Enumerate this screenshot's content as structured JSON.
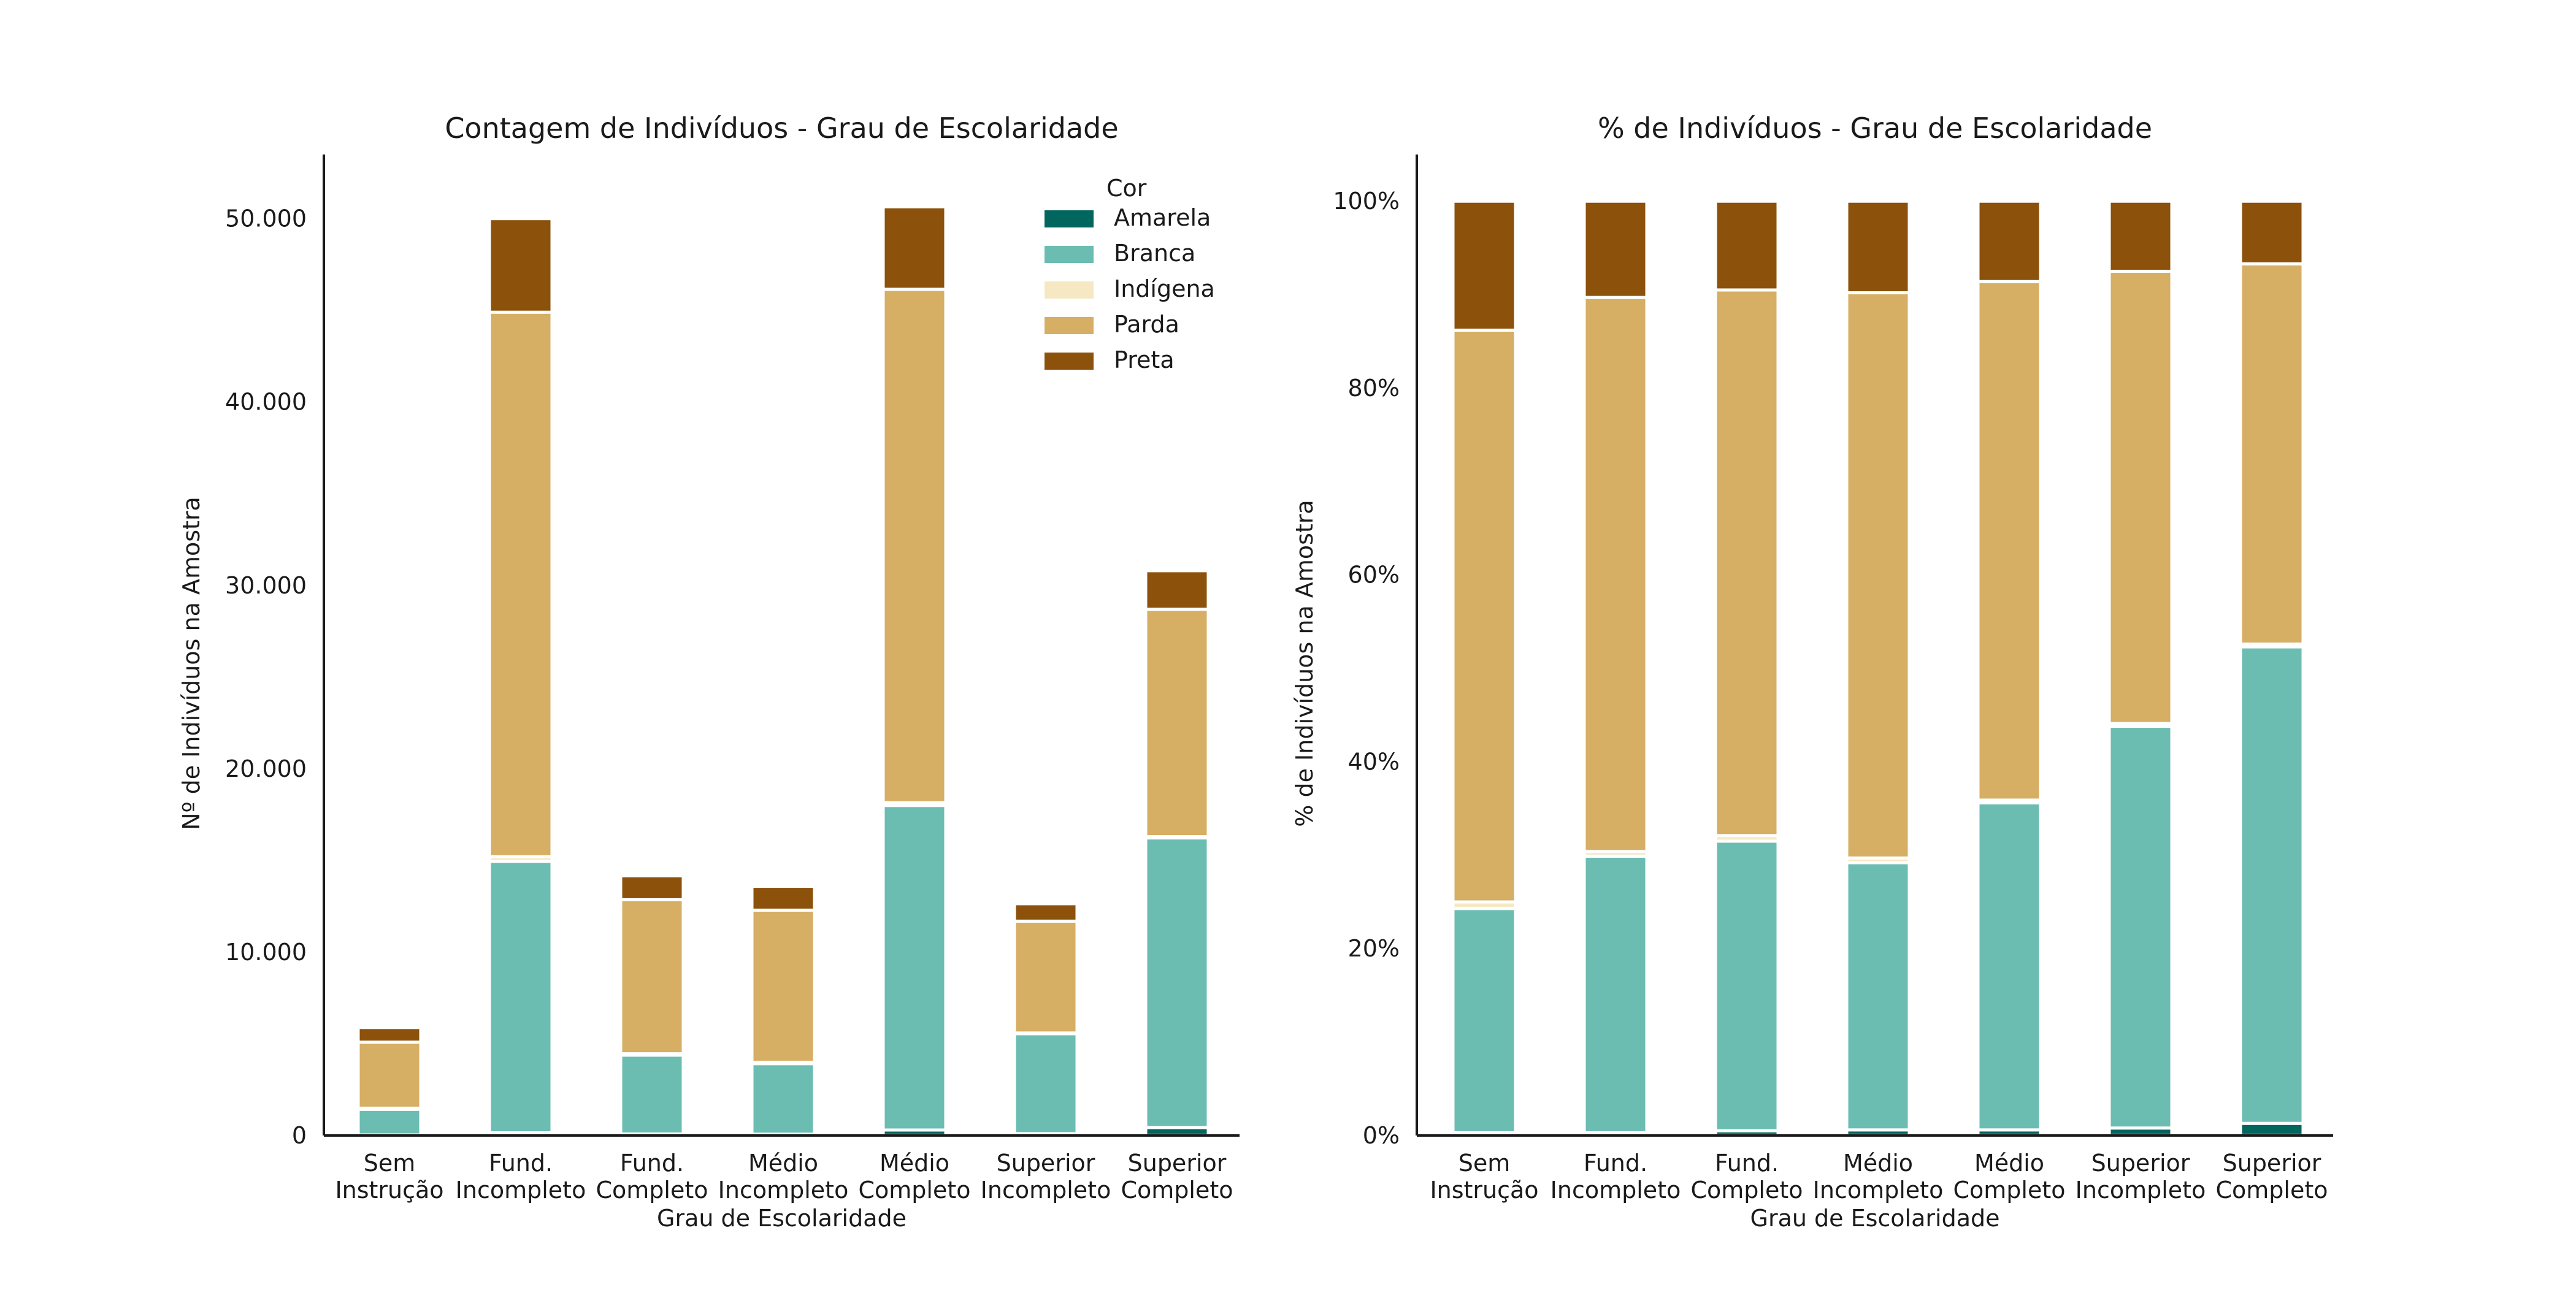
{
  "series_colors": {
    "Amarela": "#01665e",
    "Branca": "#6bbdb2",
    "Indígena": "#f6e8c3",
    "Parda": "#d6ae64",
    "Preta": "#8c510a"
  },
  "chart_data": [
    {
      "type": "bar",
      "stacked": true,
      "title": "Contagem de Indivíduos - Grau de Escolaridade",
      "xlabel": "Grau de Escolaridade",
      "ylabel": "Nº de Indivíduos na Amostra",
      "ylim": [
        0,
        53500
      ],
      "yticks": [
        0,
        10000,
        20000,
        30000,
        40000,
        50000
      ],
      "ytick_labels": [
        "0",
        "10.000",
        "20.000",
        "30.000",
        "40.000",
        "50.000"
      ],
      "categories": [
        [
          "Sem",
          "Instrução"
        ],
        [
          "Fund.",
          "Incompleto"
        ],
        [
          "Fund.",
          "Completo"
        ],
        [
          "Médio",
          "Incompleto"
        ],
        [
          "Médio",
          "Completo"
        ],
        [
          "Superior",
          "Incompleto"
        ],
        [
          "Superior",
          "Completo"
        ]
      ],
      "series": [
        {
          "name": "Amarela",
          "values": [
            30,
            150,
            80,
            70,
            300,
            100,
            430
          ]
        },
        {
          "name": "Branca",
          "values": [
            1400,
            14800,
            4300,
            3850,
            17700,
            5450,
            15800
          ]
        },
        {
          "name": "Indígena",
          "values": [
            60,
            250,
            80,
            70,
            150,
            40,
            70
          ]
        },
        {
          "name": "Parda",
          "values": [
            3600,
            29700,
            8400,
            8300,
            28000,
            6100,
            12400
          ]
        },
        {
          "name": "Preta",
          "values": [
            800,
            5100,
            1300,
            1300,
            4500,
            950,
            2100
          ]
        }
      ],
      "legend": {
        "title": "Cor",
        "placement": "top-right",
        "entries": [
          "Amarela",
          "Branca",
          "Indígena",
          "Parda",
          "Preta"
        ]
      },
      "grid": false
    },
    {
      "type": "bar",
      "stacked": true,
      "title": "% de Indivíduos - Grau de Escolaridade",
      "xlabel": "Grau de Escolaridade",
      "ylabel": "% de Indivíduos na Amostra",
      "ylim": [
        0,
        1.05
      ],
      "yticks": [
        0,
        0.2,
        0.4,
        0.6,
        0.8,
        1.0
      ],
      "ytick_labels": [
        "0%",
        "20%",
        "40%",
        "60%",
        "80%",
        "100%"
      ],
      "categories": [
        [
          "Sem",
          "Instrução"
        ],
        [
          "Fund.",
          "Incompleto"
        ],
        [
          "Fund.",
          "Completo"
        ],
        [
          "Médio",
          "Incompleto"
        ],
        [
          "Médio",
          "Completo"
        ],
        [
          "Superior",
          "Incompleto"
        ],
        [
          "Superior",
          "Completo"
        ]
      ],
      "series": [
        {
          "name": "Amarela",
          "values": [
            0.003,
            0.003,
            0.005,
            0.006,
            0.006,
            0.008,
            0.013
          ]
        },
        {
          "name": "Branca",
          "values": [
            0.24,
            0.296,
            0.31,
            0.286,
            0.35,
            0.43,
            0.51
          ]
        },
        {
          "name": "Indígena",
          "values": [
            0.007,
            0.005,
            0.006,
            0.005,
            0.003,
            0.003,
            0.003
          ]
        },
        {
          "name": "Parda",
          "values": [
            0.612,
            0.593,
            0.584,
            0.605,
            0.555,
            0.484,
            0.407
          ]
        },
        {
          "name": "Preta",
          "values": [
            0.138,
            0.103,
            0.095,
            0.098,
            0.086,
            0.075,
            0.067
          ]
        }
      ],
      "grid": false
    }
  ]
}
